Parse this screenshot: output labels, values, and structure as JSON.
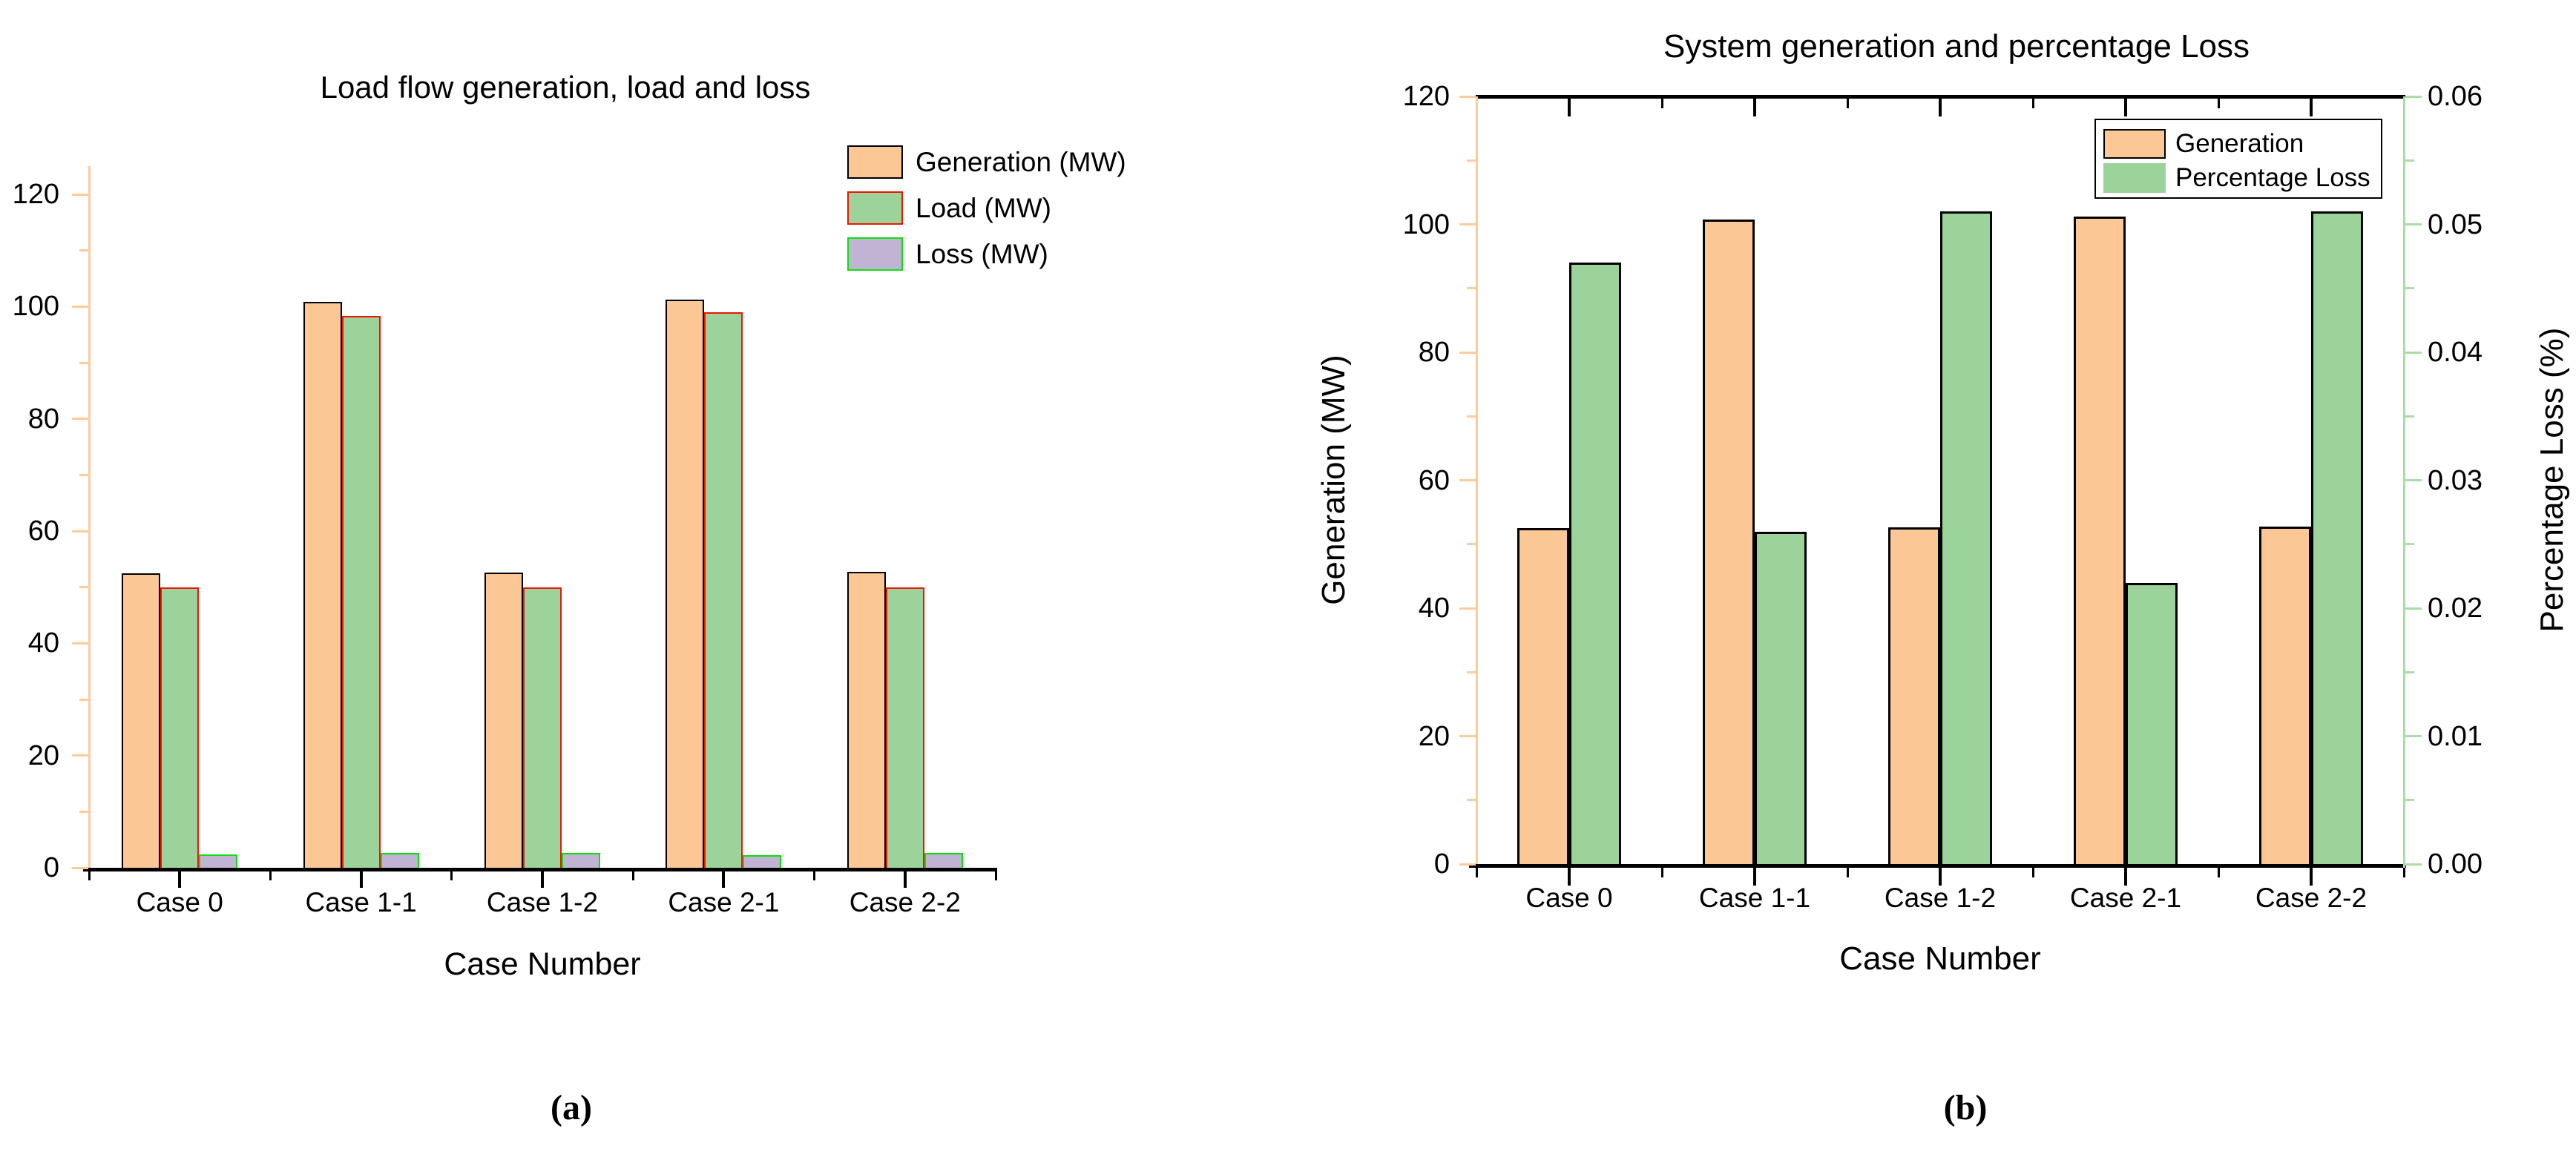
{
  "colors": {
    "black": "#000000",
    "orange_fill": "#FBC795",
    "orange_axis": "#FCCC9D",
    "green_fill": "#9CD39A",
    "green_axis": "#A9DDA5",
    "purple_fill": "#C1B3D4",
    "red_edge": "#EE1506",
    "lime_edge": "#0CE00C"
  },
  "captions": {
    "a": "(a)",
    "b": "(b)"
  },
  "chart_data": [
    {
      "type": "bar",
      "title": "Load flow generation, load and loss",
      "xlabel": "Case Number",
      "ylabel": "",
      "categories": [
        "Case 0",
        "Case 1-1",
        "Case 1-2",
        "Case 2-1",
        "Case 2-2"
      ],
      "series": [
        {
          "name": "Generation (MW)",
          "values": [
            52.5,
            100.8,
            52.6,
            101.2,
            52.7
          ],
          "fill_key": "orange_fill",
          "edge_key": "black"
        },
        {
          "name": "Load (MW)",
          "values": [
            50.0,
            98.3,
            50.0,
            99.0,
            50.0
          ],
          "fill_key": "green_fill",
          "edge_key": "red_edge"
        },
        {
          "name": "Loss (MW)",
          "values": [
            2.4,
            2.6,
            2.7,
            2.2,
            2.7
          ],
          "fill_key": "purple_fill",
          "edge_key": "lime_edge"
        }
      ],
      "ylim": [
        0,
        120
      ],
      "yticks": [
        0,
        20,
        40,
        60,
        80,
        100,
        120
      ],
      "grid": false,
      "legend_position": "top-right"
    },
    {
      "type": "bar",
      "dual_axis": true,
      "title": "System generation and percentage Loss",
      "xlabel": "Case Number",
      "ylabel_left": "Generation (MW)",
      "ylabel_right": "Percentage Loss (%)",
      "categories": [
        "Case 0",
        "Case 1-1",
        "Case 1-2",
        "Case 2-1",
        "Case 2-2"
      ],
      "series": [
        {
          "name": "Generation",
          "axis": "left",
          "values": [
            52.5,
            100.8,
            52.6,
            101.2,
            52.7
          ],
          "fill_key": "orange_fill",
          "edge_key": "black",
          "legend_edge": "black"
        },
        {
          "name": "Percentage Loss",
          "axis": "right",
          "values": [
            0.047,
            0.026,
            0.051,
            0.022,
            0.051
          ],
          "fill_key": "green_fill",
          "edge_key": "black",
          "legend_edge": null
        }
      ],
      "ylim_left": [
        0,
        120
      ],
      "ylim_right": [
        0,
        0.06
      ],
      "yticks_left": [
        0,
        20,
        40,
        60,
        80,
        100,
        120
      ],
      "yticks_right": [
        "0.00",
        "0.01",
        "0.02",
        "0.03",
        "0.04",
        "0.05",
        "0.06"
      ],
      "grid": false,
      "legend_position": "top-right-boxed"
    }
  ]
}
